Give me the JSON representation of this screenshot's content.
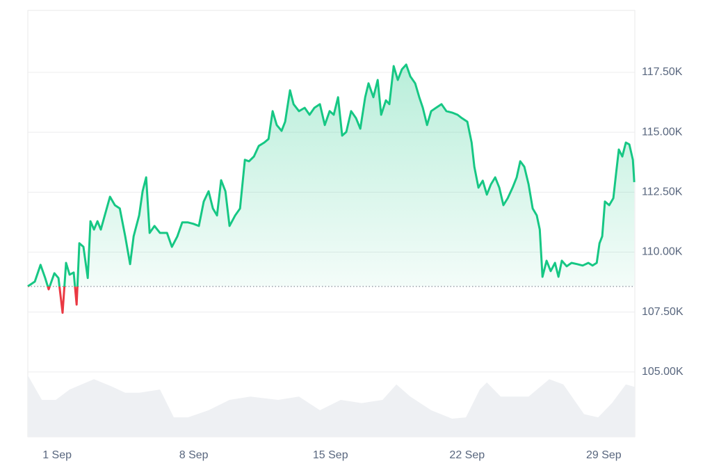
{
  "chart_data": {
    "type": "line",
    "color": "#16c784",
    "negative_color": "#ea3943",
    "x": [
      -1.5,
      -1.14,
      -0.85,
      -0.61,
      -0.43,
      -0.14,
      0.07,
      0.28,
      0.46,
      0.64,
      0.85,
      1.0,
      1.14,
      1.35,
      1.57,
      1.71,
      1.89,
      2.07,
      2.24,
      2.42,
      2.71,
      2.96,
      3.21,
      3.49,
      3.74,
      3.92,
      4.2,
      4.38,
      4.56,
      4.74,
      4.99,
      5.27,
      5.63,
      5.88,
      6.16,
      6.41,
      6.7,
      6.98,
      7.26,
      7.51,
      7.76,
      7.98,
      8.19,
      8.4,
      8.62,
      8.83,
      9.12,
      9.37,
      9.62,
      9.83,
      10.08,
      10.33,
      10.61,
      10.83,
      11.04,
      11.25,
      11.5,
      11.68,
      11.93,
      12.11,
      12.39,
      12.68,
      12.93,
      13.18,
      13.46,
      13.71,
      13.96,
      14.17,
      14.39,
      14.6,
      14.81,
      15.06,
      15.31,
      15.53,
      15.78,
      15.95,
      16.2,
      16.42,
      16.6,
      16.84,
      17.02,
      17.24,
      17.45,
      17.66,
      17.88,
      18.09,
      18.34,
      18.55,
      18.73,
      18.95,
      19.16,
      19.41,
      19.69,
      19.94,
      20.23,
      20.51,
      20.73,
      21.01,
      21.23,
      21.37,
      21.58,
      21.8,
      22.01,
      22.22,
      22.44,
      22.65,
      22.86,
      23.08,
      23.33,
      23.54,
      23.72,
      23.93,
      24.15,
      24.36,
      24.57,
      24.72,
      24.86,
      25.07,
      25.28,
      25.5,
      25.68,
      25.85,
      26.1,
      26.35,
      26.64,
      26.92,
      27.21,
      27.42,
      27.64,
      27.78,
      27.92,
      28.06,
      28.28,
      28.49,
      28.63,
      28.77,
      28.95,
      29.13,
      29.31,
      29.49,
      29.56
    ],
    "values": [
      108570,
      108770,
      109470,
      108920,
      108450,
      109120,
      108920,
      107470,
      109550,
      109060,
      109150,
      107810,
      110370,
      110220,
      108920,
      111290,
      110940,
      111290,
      110940,
      111470,
      112310,
      111960,
      111820,
      110660,
      109500,
      110660,
      111530,
      112540,
      113120,
      110800,
      111090,
      110800,
      110800,
      110220,
      110660,
      111240,
      111240,
      111180,
      111090,
      112110,
      112540,
      111820,
      111530,
      113000,
      112540,
      111090,
      111530,
      111820,
      113850,
      113790,
      113990,
      114430,
      114570,
      114720,
      115880,
      115300,
      115060,
      115440,
      116750,
      116170,
      115880,
      116020,
      115730,
      116020,
      116170,
      115300,
      115880,
      115730,
      116460,
      114860,
      115010,
      115880,
      115590,
      115150,
      116460,
      117040,
      116460,
      117180,
      115730,
      116330,
      116170,
      117760,
      117180,
      117620,
      117820,
      117330,
      117040,
      116460,
      116020,
      115300,
      115880,
      116020,
      116170,
      115880,
      115820,
      115730,
      115590,
      115440,
      114570,
      113560,
      112690,
      112980,
      112400,
      112830,
      113120,
      112690,
      111960,
      112250,
      112690,
      113120,
      113790,
      113560,
      112830,
      111820,
      111530,
      110940,
      108970,
      109640,
      109210,
      109550,
      108970,
      109640,
      109410,
      109550,
      109500,
      109440,
      109550,
      109440,
      109550,
      110370,
      110660,
      112110,
      111960,
      112250,
      113270,
      114280,
      113990,
      114570,
      114490,
      113850,
      112920
    ],
    "xlim": [
      -1.5,
      29.59
    ],
    "ylim": [
      102300,
      120080
    ],
    "xticks": [
      {
        "value": 0,
        "label": "1 Sep"
      },
      {
        "value": 7,
        "label": "8 Sep"
      },
      {
        "value": 14,
        "label": "15 Sep"
      },
      {
        "value": 21,
        "label": "22 Sep"
      },
      {
        "value": 28,
        "label": "29 Sep"
      }
    ],
    "yticks": [
      {
        "value": 117500,
        "label": "117.50K"
      },
      {
        "value": 115000,
        "label": "115.00K"
      },
      {
        "value": 112500,
        "label": "112.50K"
      },
      {
        "value": 110000,
        "label": "110.00K"
      },
      {
        "value": 107500,
        "label": "107.50K"
      },
      {
        "value": 105000,
        "label": "105.00K"
      }
    ],
    "grid": true,
    "volume": {
      "color": "#eef0f3",
      "ylim": [
        0,
        100
      ],
      "x": [
        -1.5,
        -0.78,
        -0.07,
        0.64,
        1.89,
        2.78,
        3.49,
        4.2,
        5.27,
        5.98,
        6.7,
        7.76,
        8.83,
        9.9,
        11.32,
        12.39,
        13.46,
        14.53,
        15.6,
        16.67,
        17.38,
        18.09,
        19.16,
        20.23,
        20.94,
        21.65,
        22.01,
        22.72,
        24.15,
        25.21,
        25.93,
        26.99,
        27.71,
        28.42,
        29.13,
        29.59
      ],
      "values": [
        95,
        57,
        57,
        73,
        89,
        78,
        68,
        68,
        73,
        30,
        30,
        41,
        57,
        62,
        57,
        62,
        41,
        57,
        52,
        57,
        81,
        62,
        41,
        28,
        30,
        73,
        84,
        62,
        62,
        89,
        81,
        35,
        30,
        52,
        81,
        77
      ]
    }
  }
}
